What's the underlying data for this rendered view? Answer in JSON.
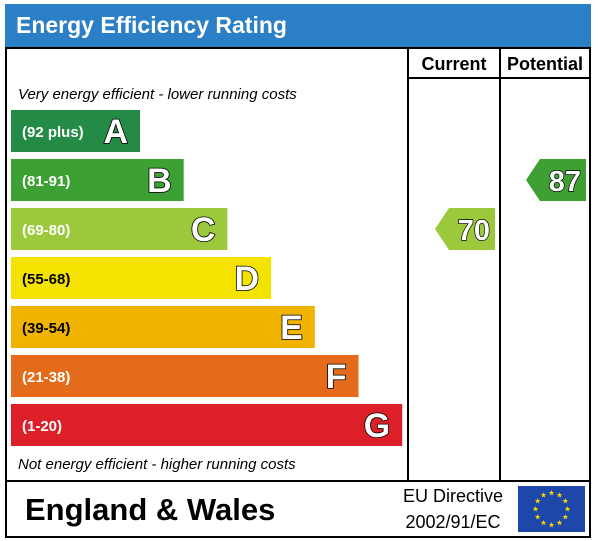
{
  "title": "Energy Efficiency Rating",
  "columns": {
    "current": "Current",
    "potential": "Potential"
  },
  "top_note": "Very energy efficient - lower running costs",
  "bottom_note": "Not energy efficient - higher running costs",
  "footer": {
    "region": "England & Wales",
    "directive_line1": "EU Directive",
    "directive_line2": "2002/91/EC"
  },
  "colors": {
    "title_bg": "#2a7fc6",
    "A": "#238b45",
    "B": "#3ca033",
    "C": "#9cc83c",
    "D": "#f4e300",
    "E": "#f0b300",
    "F": "#e36b1b",
    "G": "#dc1f28",
    "eu_flag": "#1d47a8",
    "eu_star": "#f7d500"
  },
  "icons": {
    "eu_flag": "eu-flag-icon"
  },
  "chart_data": {
    "type": "bar",
    "title": "Energy Efficiency Rating",
    "bands": [
      {
        "letter": "A",
        "range": "(92 plus)",
        "min": 92,
        "max": null
      },
      {
        "letter": "B",
        "range": "(81-91)",
        "min": 81,
        "max": 91
      },
      {
        "letter": "C",
        "range": "(69-80)",
        "min": 69,
        "max": 80
      },
      {
        "letter": "D",
        "range": "(55-68)",
        "min": 55,
        "max": 68
      },
      {
        "letter": "E",
        "range": "(39-54)",
        "min": 39,
        "max": 54
      },
      {
        "letter": "F",
        "range": "(21-38)",
        "min": 21,
        "max": 38
      },
      {
        "letter": "G",
        "range": "(1-20)",
        "min": 1,
        "max": 20
      }
    ],
    "current": {
      "value": 70,
      "band": "C"
    },
    "potential": {
      "value": 87,
      "band": "B"
    }
  }
}
